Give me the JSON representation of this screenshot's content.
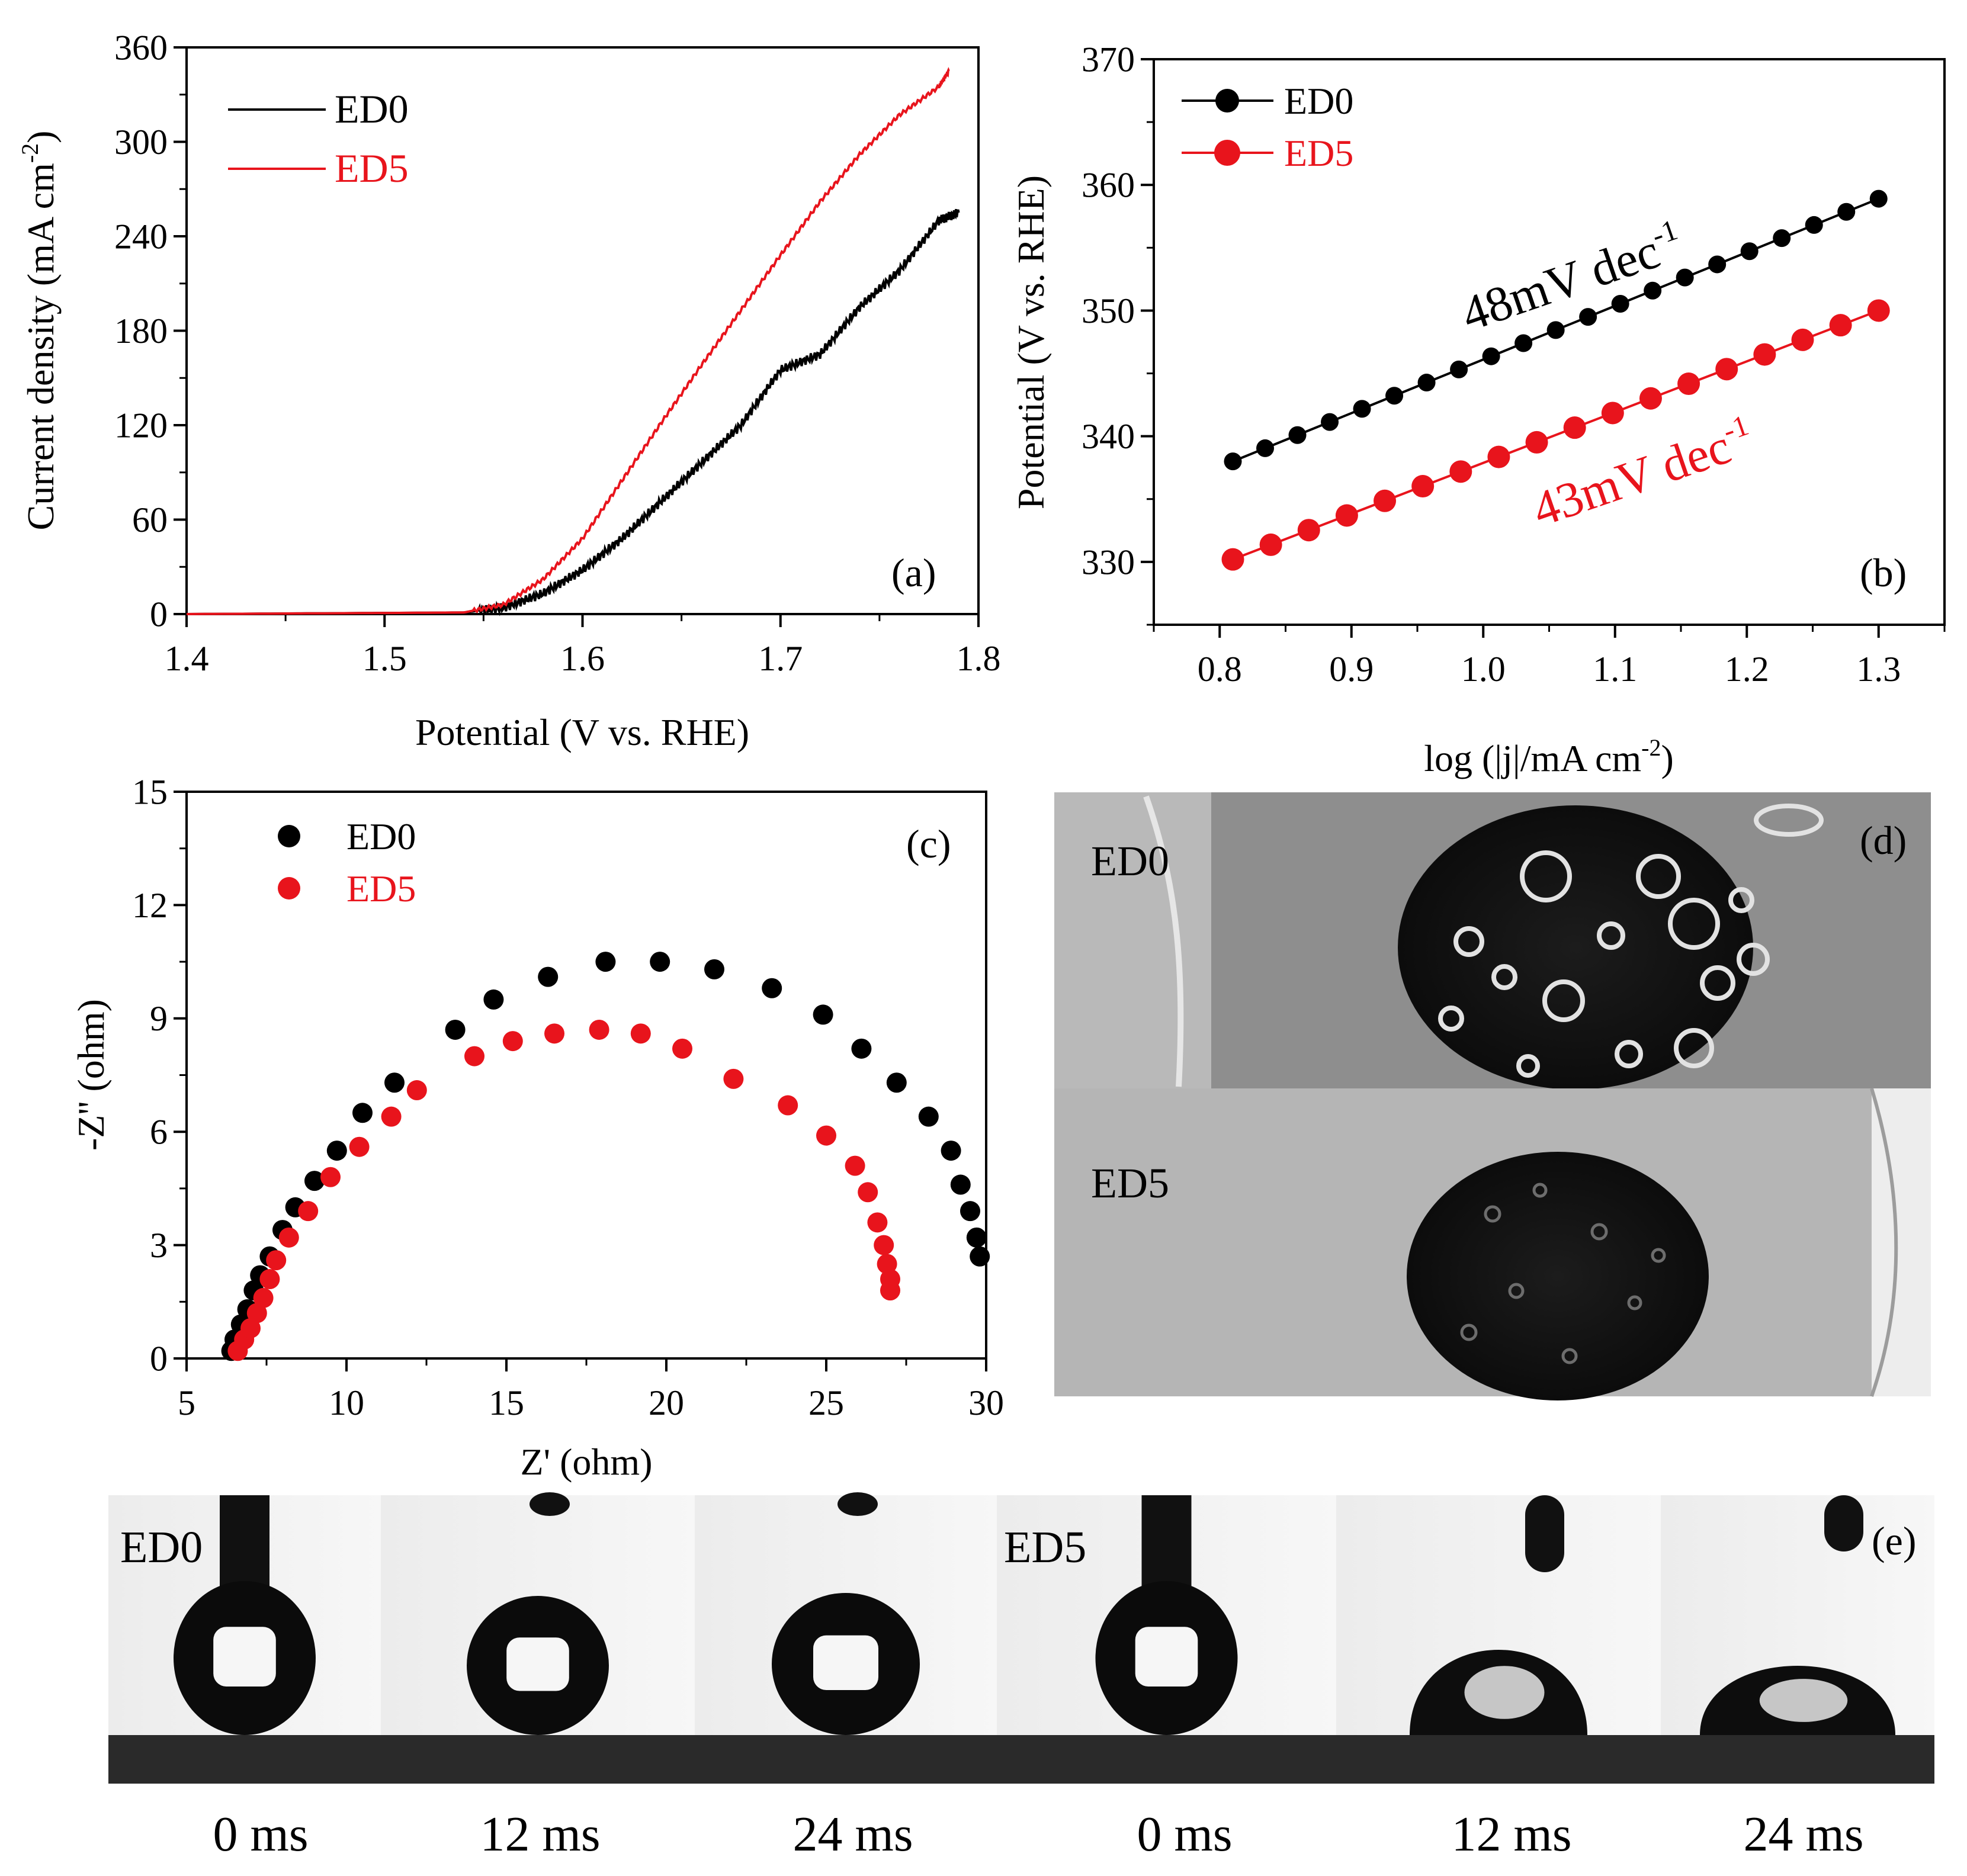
{
  "colors": {
    "ed0": "#000000",
    "ed5": "#e8141c",
    "axis": "#000000"
  },
  "chart_data": [
    {
      "panel": "(a)",
      "type": "line",
      "xlabel": "Potential (V vs. RHE)",
      "ylabel_main": "Current density (mA cm",
      "ylabel_sup": "-2",
      "ylabel_end": ")",
      "xlim": [
        1.4,
        1.8
      ],
      "ylim": [
        0,
        360
      ],
      "xticks": [
        "1.4",
        "1.5",
        "1.6",
        "1.7",
        "1.8"
      ],
      "yticks": [
        "0",
        "60",
        "120",
        "180",
        "240",
        "300",
        "360"
      ],
      "legend": [
        "ED0",
        "ED5"
      ],
      "series": [
        {
          "name": "ED0",
          "x": [
            1.4,
            1.54,
            1.56,
            1.58,
            1.6,
            1.62,
            1.64,
            1.66,
            1.68,
            1.7,
            1.72,
            1.74,
            1.76,
            1.78,
            1.79
          ],
          "y": [
            0,
            1,
            4,
            13,
            28,
            48,
            72,
            96,
            120,
            155,
            165,
            195,
            218,
            250,
            255
          ]
        },
        {
          "name": "ED5",
          "x": [
            1.4,
            1.54,
            1.56,
            1.58,
            1.6,
            1.62,
            1.64,
            1.66,
            1.68,
            1.7,
            1.72,
            1.74,
            1.76,
            1.78,
            1.785
          ],
          "y": [
            0,
            1,
            6,
            22,
            48,
            85,
            122,
            158,
            193,
            228,
            262,
            292,
            317,
            335,
            345
          ]
        }
      ]
    },
    {
      "panel": "(b)",
      "type": "scatter",
      "xlabel_main": "log (|j|/mA cm",
      "xlabel_sup": "-2",
      "xlabel_end": ")",
      "ylabel": "Potential (V vs. RHE)",
      "xlim": [
        0.75,
        1.35
      ],
      "ylim": [
        325,
        370
      ],
      "xticks": [
        "0.8",
        "0.9",
        "1.0",
        "1.1",
        "1.2",
        "1.3"
      ],
      "yticks": [
        "330",
        "340",
        "350",
        "360",
        "370"
      ],
      "legend": [
        "ED0",
        "ED5"
      ],
      "annotations": [
        {
          "series": "ED0",
          "main": "48mV dec",
          "sup": "-1"
        },
        {
          "series": "ED5",
          "main": "43mV dec",
          "sup": "-1"
        }
      ],
      "series": [
        {
          "name": "ED0",
          "x_start": 0.81,
          "x_end": 1.3,
          "y_start": 338.0,
          "y_end": 358.9,
          "points": 21
        },
        {
          "name": "ED5",
          "x_start": 0.81,
          "x_end": 1.3,
          "y_start": 330.2,
          "y_end": 350.0,
          "points": 21
        }
      ]
    },
    {
      "panel": "(c)",
      "type": "scatter",
      "xlabel": "Z' (ohm)",
      "ylabel": "-Z'' (ohm)",
      "xlim": [
        5,
        30
      ],
      "ylim": [
        0,
        15
      ],
      "xticks": [
        "5",
        "10",
        "15",
        "20",
        "25",
        "30"
      ],
      "yticks": [
        "0",
        "3",
        "6",
        "9",
        "12",
        "15"
      ],
      "legend": [
        "ED0",
        "ED5"
      ],
      "series": [
        {
          "name": "ED0",
          "x": [
            6.4,
            6.5,
            6.7,
            6.9,
            7.1,
            7.3,
            7.6,
            8.0,
            8.4,
            9.0,
            9.7,
            10.5,
            11.5,
            13.4,
            14.6,
            16.3,
            18.1,
            19.8,
            21.5,
            23.3,
            24.9,
            26.1,
            27.2,
            28.2,
            28.9,
            29.2,
            29.5,
            29.7,
            29.8
          ],
          "y": [
            0.2,
            0.5,
            0.9,
            1.3,
            1.8,
            2.2,
            2.7,
            3.4,
            4.0,
            4.7,
            5.5,
            6.5,
            7.3,
            8.7,
            9.5,
            10.1,
            10.5,
            10.5,
            10.3,
            9.8,
            9.1,
            8.2,
            7.3,
            6.4,
            5.5,
            4.6,
            3.9,
            3.2,
            2.7
          ]
        },
        {
          "name": "ED5",
          "x": [
            6.6,
            6.8,
            7.0,
            7.2,
            7.4,
            7.6,
            7.8,
            8.2,
            8.8,
            9.5,
            10.4,
            11.4,
            12.2,
            14.0,
            15.2,
            16.5,
            17.9,
            19.2,
            20.5,
            22.1,
            23.8,
            25.0,
            25.9,
            26.3,
            26.6,
            26.8,
            26.9,
            27.0,
            27.0
          ],
          "y": [
            0.2,
            0.5,
            0.8,
            1.2,
            1.6,
            2.1,
            2.6,
            3.2,
            3.9,
            4.8,
            5.6,
            6.4,
            7.1,
            8.0,
            8.4,
            8.6,
            8.7,
            8.6,
            8.2,
            7.4,
            6.7,
            5.9,
            5.1,
            4.4,
            3.6,
            3.0,
            2.5,
            2.1,
            1.8
          ]
        }
      ]
    }
  ],
  "panel_d": {
    "tag": "(d)",
    "top_label": "ED0",
    "bottom_label": "ED5"
  },
  "panel_e": {
    "tag": "(e)",
    "group_labels": [
      "ED0",
      "ED5"
    ],
    "frames": [
      {
        "time": "0 ms"
      },
      {
        "time": "12 ms"
      },
      {
        "time": "24 ms"
      },
      {
        "time": "0 ms"
      },
      {
        "time": "12 ms"
      },
      {
        "time": "24 ms"
      }
    ]
  }
}
